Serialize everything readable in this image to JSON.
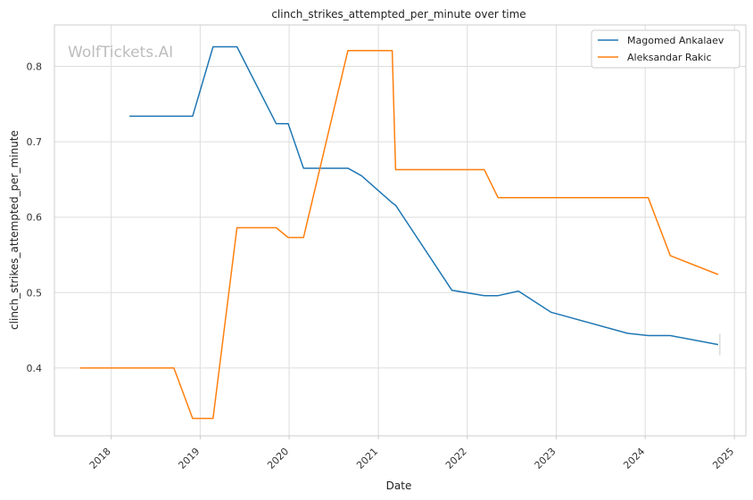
{
  "chart_data": {
    "type": "line",
    "title": "clinch_strikes_attempted_per_minute over time",
    "xlabel": "Date",
    "ylabel": "clinch_strikes_attempted_per_minute",
    "watermark": "WolfTickets.AI",
    "xlim": [
      "2017-05-13",
      "2025-02-17"
    ],
    "ylim": [
      0.31,
      0.855
    ],
    "x_ticks": [
      "2018",
      "2019",
      "2020",
      "2021",
      "2022",
      "2023",
      "2024",
      "2025"
    ],
    "x_tick_dates": [
      "2018-01-01",
      "2019-01-01",
      "2020-01-01",
      "2021-01-01",
      "2022-01-01",
      "2023-01-01",
      "2024-01-01",
      "2025-01-01"
    ],
    "y_ticks": [
      0.4,
      0.5,
      0.6,
      0.7,
      0.8
    ],
    "y_tick_labels": [
      "0.4",
      "0.5",
      "0.6",
      "0.7",
      "0.8"
    ],
    "grid": true,
    "legend_position": "top-right",
    "series": [
      {
        "name": "Magomed Ankalaev",
        "color": "#1f77b4",
        "points": [
          [
            "2018-03-17",
            0.734
          ],
          [
            "2018-12-01",
            0.734
          ],
          [
            "2019-02-23",
            0.826
          ],
          [
            "2019-06-01",
            0.826
          ],
          [
            "2019-11-09",
            0.724
          ],
          [
            "2019-12-28",
            0.724
          ],
          [
            "2020-02-29",
            0.665
          ],
          [
            "2020-08-29",
            0.665
          ],
          [
            "2020-10-24",
            0.655
          ],
          [
            "2021-02-27",
            0.619
          ],
          [
            "2021-03-13",
            0.616
          ],
          [
            "2021-10-30",
            0.503
          ],
          [
            "2022-03-12",
            0.496
          ],
          [
            "2022-05-07",
            0.496
          ],
          [
            "2022-07-30",
            0.502
          ],
          [
            "2022-12-10",
            0.474
          ],
          [
            "2023-10-21",
            0.446
          ],
          [
            "2024-01-13",
            0.443
          ],
          [
            "2024-04-13",
            0.443
          ],
          [
            "2024-10-26",
            0.431
          ]
        ]
      },
      {
        "name": "Aleksandar Rakic",
        "color": "#ff7f0e",
        "points": [
          [
            "2017-08-26",
            0.4
          ],
          [
            "2018-09-15",
            0.4
          ],
          [
            "2018-12-01",
            0.333
          ],
          [
            "2019-02-23",
            0.333
          ],
          [
            "2019-06-01",
            0.586
          ],
          [
            "2019-11-09",
            0.586
          ],
          [
            "2019-12-28",
            0.573
          ],
          [
            "2020-02-29",
            0.573
          ],
          [
            "2020-08-29",
            0.821
          ],
          [
            "2021-02-27",
            0.821
          ],
          [
            "2021-03-13",
            0.663
          ],
          [
            "2022-03-12",
            0.663
          ],
          [
            "2022-05-07",
            0.626
          ],
          [
            "2024-01-13",
            0.626
          ],
          [
            "2024-04-13",
            0.549
          ],
          [
            "2024-10-26",
            0.524
          ]
        ]
      }
    ]
  }
}
